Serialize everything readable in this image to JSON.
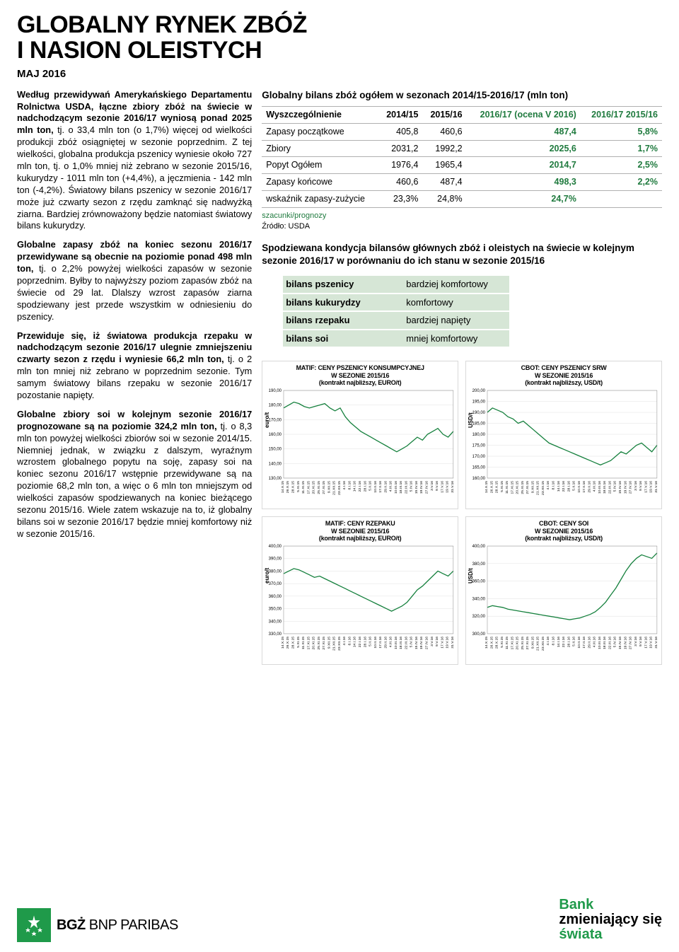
{
  "header": {
    "title_line1": "GLOBALNY RYNEK ZBÓŻ",
    "title_line2": "I NASION OLEISTYCH",
    "subtitle": "MAJ 2016"
  },
  "body": {
    "p1_lead": "Według przewidywań Amerykańskiego Departamentu Rolnictwa USDA, łączne zbiory zbóż na świecie w nadchodzącym sezonie 2016/17 wyniosą ponad 2025 mln ton,",
    "p1_rest": " tj. o 33,4 mln ton (o 1,7%) więcej od wielkości produkcji zbóż osiągniętej w sezonie poprzednim. Z tej wielkości, globalna produkcja pszenicy wyniesie około 727 mln ton, tj. o 1,0% mniej niż zebrano w sezonie 2015/16, kukurydzy - 1011 mln ton (+4,4%), a jęczmienia - 142 mln ton (-4,2%). Światowy bilans pszenicy w sezonie 2016/17 może już czwarty sezon z rzędu zamknąć się nadwyżką ziarna. Bardziej zrównoważony będzie natomiast światowy bilans kukurydzy.",
    "p2_lead": "Globalne zapasy zbóż na koniec sezonu 2016/17 przewidywane są obecnie na poziomie ponad 498 mln ton,",
    "p2_rest": " tj. o 2,2% powyżej wielkości zapasów w sezonie poprzednim. Byłby to najwyższy poziom zapasów zbóż na świecie od 29 lat. Dlalszy wzrost zapasów ziarna spodziewany jest przede wszystkim w odniesieniu do pszenicy.",
    "p3_lead": "Przewiduje się, iż światowa produkcja rzepaku w nadchodzącym sezonie 2016/17 ulegnie zmniejszeniu czwarty sezon z rzędu i wyniesie 66,2 mln ton,",
    "p3_rest": " tj. o 2 mln ton mniej niż zebrano w poprzednim sezonie. Tym samym światowy bilans rzepaku w sezonie 2016/17 pozostanie napięty.",
    "p4_lead": "Globalne zbiory soi w kolejnym sezonie 2016/17 prognozowane są na poziomie 324,2 mln ton,",
    "p4_rest": " tj. o 8,3 mln ton powyżej wielkości zbiorów soi w sezonie 2014/15. Niemniej jednak, w związku z dalszym, wyraźnym wzrostem globalnego popytu na soję, zapasy soi na koniec sezonu 2016/17 wstępnie przewidywane są na poziomie 68,2 mln ton, a więc o 6 mln ton mniejszym od wielkości zapasów spodziewanych na koniec bieżącego sezonu 2015/16. Wiele zatem wskazuje na to, iż globalny bilans soi w sezonie 2016/17 będzie mniej komfortowy niż w sezonie 2015/16."
  },
  "balance_table": {
    "title": "Globalny bilans zbóż ogółem w sezonach 2014/15-2016/17 (mln ton)",
    "cols": [
      "Wyszczególnienie",
      "2014/15",
      "2015/16",
      "2016/17 (ocena V 2016)",
      "2016/17 2015/16"
    ],
    "rows": [
      {
        "label": "Zapasy początkowe",
        "c1": "405,8",
        "c2": "460,6",
        "c3": "487,4",
        "c4": "5,8%"
      },
      {
        "label": "Zbiory",
        "c1": "2031,2",
        "c2": "1992,2",
        "c3": "2025,6",
        "c4": "1,7%"
      },
      {
        "label": "Popyt Ogółem",
        "c1": "1976,4",
        "c2": "1965,4",
        "c3": "2014,7",
        "c4": "2,5%"
      },
      {
        "label": "Zapasy końcowe",
        "c1": "460,6",
        "c2": "487,4",
        "c3": "498,3",
        "c4": "2,2%"
      },
      {
        "label": "wskaźnik zapasy-zużycie",
        "c1": "23,3%",
        "c2": "24,8%",
        "c3": "24,7%",
        "c4": ""
      }
    ],
    "note": "szacunki/prognozy",
    "src": "Źródło: USDA"
  },
  "condition": {
    "title": "Spodziewana kondycja bilansów głównych zbóż i oleistych na świecie w kolejnym sezonie 2016/17 w porównaniu do ich stanu w sezonie 2015/16",
    "rows": [
      {
        "k": "bilans pszenicy",
        "v": "bardziej komfortowy"
      },
      {
        "k": "bilans kukurydzy",
        "v": "komfortowy"
      },
      {
        "k": "bilans rzepaku",
        "v": "bardziej napięty"
      },
      {
        "k": "bilans soi",
        "v": "mniej komfortowy"
      }
    ]
  },
  "charts": {
    "xticks": [
      "14.X.15",
      "26.X.15",
      "28.X.15",
      "5.XI.15",
      "11.XI.15",
      "17.XI.15",
      "20.XI.15",
      "25.XI.15",
      "27.XI.15",
      "9.XII.15",
      "21.XII.15",
      "23.XII.15",
      "4.I.16",
      "8.I.16",
      "14.I.16",
      "22.I.16",
      "28.I.16",
      "5.II.16",
      "10.II.16",
      "17.II.16",
      "29.II.16",
      "4.III.16",
      "10.III.16",
      "18.III.16",
      "22.III.16",
      "5.IV.16",
      "15.IV.16",
      "19.IV.16",
      "27.IV.16",
      "3.V.16",
      "9.V.16",
      "17.V.16",
      "19.V.16",
      "31.V.16"
    ],
    "line_color": "#15803d",
    "grid_color": "#e0e0e0",
    "c1": {
      "title1": "MATIF: CENY PSZENICY KONSUMPCYJNEJ",
      "title2": "W SEZONIE 2015/16",
      "title3": "(kontrakt najbliższy, EURO/t)",
      "ylabel": "euro/t",
      "ymin": 130,
      "ymax": 190,
      "ystep": 10,
      "values": [
        178,
        180,
        182,
        181,
        179,
        178,
        179,
        180,
        181,
        178,
        176,
        178,
        172,
        168,
        165,
        162,
        160,
        158,
        156,
        154,
        152,
        150,
        148,
        150,
        152,
        155,
        158,
        156,
        160,
        162,
        164,
        160,
        158,
        162
      ]
    },
    "c2": {
      "title1": "CBOT: CENY PSZENICY SRW",
      "title2": "W SEZONIE 2015/16",
      "title3": "(kontrakt najbliższy, USD/t)",
      "ylabel": "USD/t",
      "ymin": 160,
      "ymax": 200,
      "ystep": 5,
      "values": [
        190,
        192,
        191,
        190,
        188,
        187,
        185,
        186,
        184,
        182,
        180,
        178,
        176,
        175,
        174,
        173,
        172,
        171,
        170,
        169,
        168,
        167,
        166,
        167,
        168,
        170,
        172,
        171,
        173,
        175,
        176,
        174,
        172,
        175
      ]
    },
    "c3": {
      "title1": "MATIF: CENY RZEPAKU",
      "title2": "W SEZONIE 2015/16",
      "title3": "(kontrakt najbliższy, EURO/t)",
      "ylabel": "euro/t",
      "ymin": 330,
      "ymax": 400,
      "ystep": 10,
      "values": [
        378,
        380,
        382,
        381,
        379,
        377,
        375,
        376,
        374,
        372,
        370,
        368,
        366,
        364,
        362,
        360,
        358,
        356,
        354,
        352,
        350,
        348,
        350,
        352,
        355,
        360,
        365,
        368,
        372,
        376,
        380,
        378,
        376,
        380
      ]
    },
    "c4": {
      "title1": "CBOT: CENY SOI",
      "title2": "W SEZONIE 2015/16",
      "title3": "(kontrakt najbliższy, USD/t)",
      "ylabel": "USD/t",
      "ymin": 300,
      "ymax": 400,
      "ystep": 20,
      "values": [
        330,
        332,
        331,
        330,
        328,
        327,
        326,
        325,
        324,
        323,
        322,
        321,
        320,
        319,
        318,
        317,
        316,
        317,
        318,
        320,
        322,
        325,
        330,
        336,
        344,
        352,
        362,
        372,
        380,
        386,
        390,
        388,
        386,
        392
      ]
    }
  },
  "footer": {
    "bank_text_strong": "BGŻ",
    "bank_text_rest": "BNP PARIBAS",
    "tagline_l1": "Bank",
    "tagline_l2": "zmieniający się",
    "tagline_l3": "świata"
  }
}
